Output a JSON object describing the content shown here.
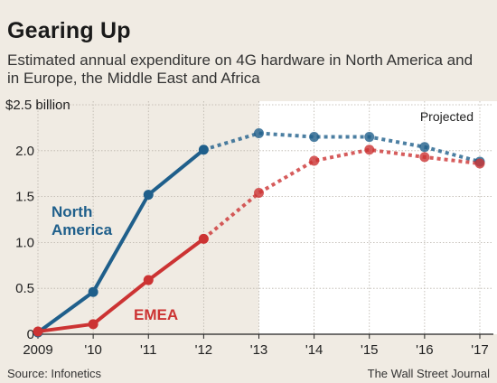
{
  "title": "Gearing Up",
  "subtitle": "Estimated annual expenditure on 4G hardware in North America and in Europe, the Middle East and Africa",
  "source": "Source: Infonetics",
  "credit": "The Wall Street Journal",
  "colors": {
    "north_america": "#1f5f8b",
    "emea": "#cc3333",
    "projected_bg": "#ffffff",
    "background": "#f0ebe3"
  },
  "chart_data": {
    "type": "line",
    "x": [
      2009,
      2010,
      2011,
      2012,
      2013,
      2014,
      2015,
      2016,
      2017
    ],
    "x_tick_labels": [
      "2009",
      "'10",
      "'11",
      "'12",
      "'13",
      "'14",
      "'15",
      "'16",
      "'17"
    ],
    "y_tick_labels": [
      "0",
      "0.5",
      "1.0",
      "1.5",
      "2.0",
      "$2.5 billion"
    ],
    "y_ticks": [
      0,
      0.5,
      1.0,
      1.5,
      2.0,
      2.5
    ],
    "ylim": [
      0,
      2.5
    ],
    "projected_from": 2012,
    "projected_label": "Projected",
    "grid": true,
    "series": [
      {
        "name": "North America",
        "label_lines": [
          "North",
          "America"
        ],
        "color": "#1f5f8b",
        "values": [
          0.02,
          0.46,
          1.52,
          2.01,
          2.19,
          2.15,
          2.15,
          2.04,
          1.88
        ]
      },
      {
        "name": "EMEA",
        "label_lines": [
          "EMEA"
        ],
        "color": "#cc3333",
        "values": [
          0.03,
          0.11,
          0.59,
          1.04,
          1.54,
          1.89,
          2.01,
          1.93,
          1.86
        ]
      }
    ]
  }
}
